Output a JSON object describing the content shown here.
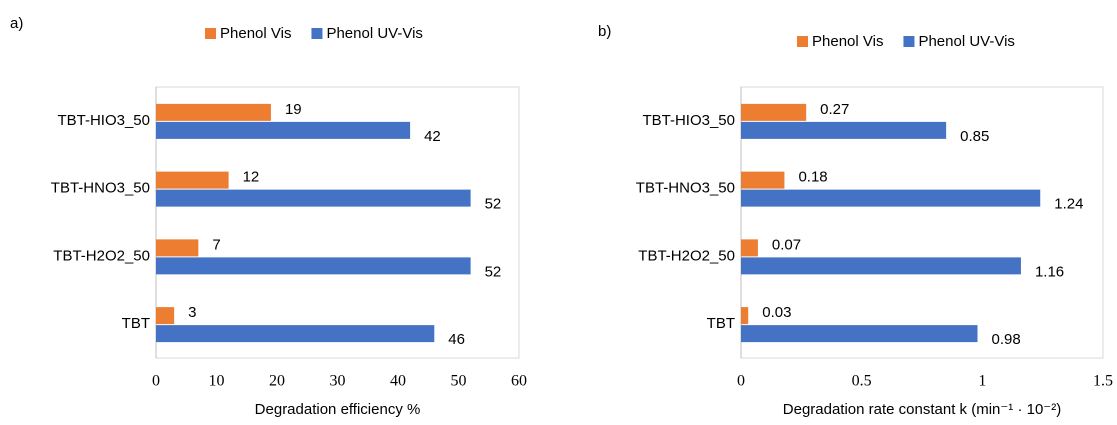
{
  "chart_data": [
    {
      "type": "bar",
      "orientation": "horizontal",
      "panel": "a)",
      "categories": [
        "TBT-HIO3_50",
        "TBT-HNO3_50",
        "TBT-H2O2_50",
        "TBT"
      ],
      "series": [
        {
          "name": "Phenol Vis",
          "color": "#ed7d31",
          "values": [
            19,
            12,
            7,
            3
          ]
        },
        {
          "name": "Phenol UV-Vis",
          "color": "#4472c4",
          "values": [
            42,
            52,
            52,
            46
          ]
        }
      ],
      "xlabel": "Degradation efficiency %",
      "xlim": [
        0,
        60
      ],
      "xticks": [
        0,
        10,
        20,
        30,
        40,
        50,
        60
      ],
      "legend": "top"
    },
    {
      "type": "bar",
      "orientation": "horizontal",
      "panel": "b)",
      "categories": [
        "TBT-HIO3_50",
        "TBT-HNO3_50",
        "TBT-H2O2_50",
        "TBT"
      ],
      "series": [
        {
          "name": "Phenol Vis",
          "color": "#ed7d31",
          "values": [
            0.27,
            0.18,
            0.07,
            0.03
          ]
        },
        {
          "name": "Phenol UV-Vis",
          "color": "#4472c4",
          "values": [
            0.85,
            1.24,
            1.16,
            0.98
          ]
        }
      ],
      "xlabel": "Degradation rate constant k (min⁻¹ · 10⁻²)",
      "xlim": [
        0,
        1.5
      ],
      "xticks": [
        0,
        0.5,
        1,
        1.5
      ],
      "legend": "top"
    }
  ]
}
